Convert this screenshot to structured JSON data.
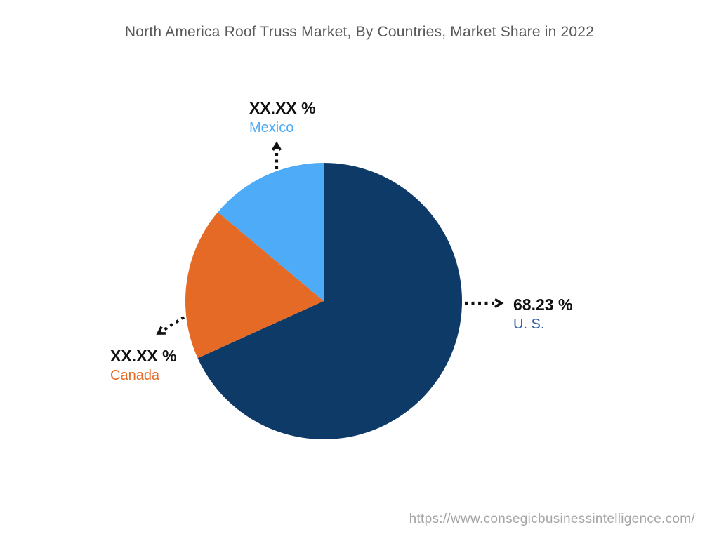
{
  "title": "North America Roof Truss Market, By Countries, Market Share in 2022",
  "footer": {
    "url": "https://www.consegicbusinessintelligence.com/"
  },
  "chart_data": {
    "type": "pie",
    "title": "North America Roof Truss Market, By Countries, Market Share in 2022",
    "start_angle_deg": 0,
    "direction": "clockwise",
    "legend": "none",
    "labels_note": "Canada and Mexico values are masked as XX.XX % in the image; their value_pct are estimated from slice angles",
    "slices": [
      {
        "id": "us",
        "name": "U. S.",
        "value_pct": 68.23,
        "value_label": "68.23 %",
        "color": "#0d3a67",
        "name_color": "#2e5fa3"
      },
      {
        "id": "canada",
        "name": "Canada",
        "value_pct": 17.9,
        "value_label": "XX.XX %",
        "color": "#e56a26",
        "name_color": "#e56a26"
      },
      {
        "id": "mexico",
        "name": "Mexico",
        "value_pct": 13.87,
        "value_label": "XX.XX %",
        "color": "#4dabf7",
        "name_color": "#4dabf7"
      }
    ],
    "leader_line_color": "#111111",
    "value_text_color": "#111111"
  }
}
